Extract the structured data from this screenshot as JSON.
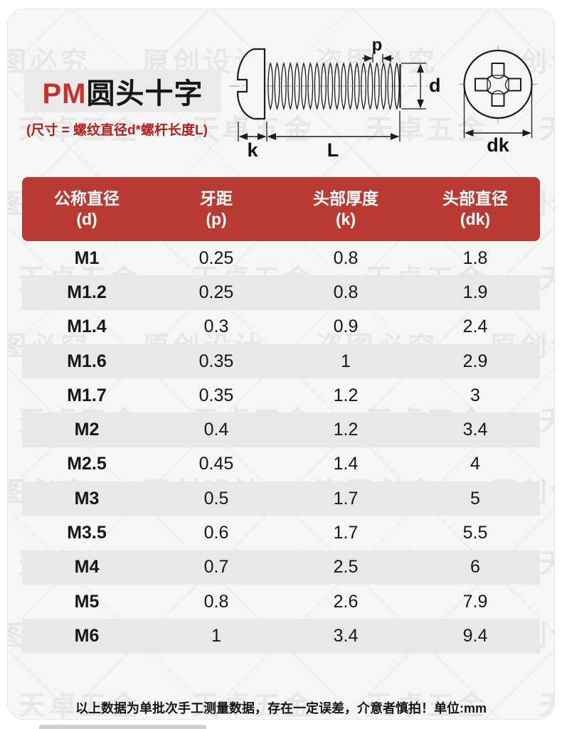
{
  "header": {
    "title_prefix": "PM",
    "title_rest": "圆头十字",
    "subtitle": "(尺寸 = 螺纹直径d*螺杆长度L)"
  },
  "watermarks": {
    "texts": [
      "原创设计",
      "盗图必究",
      "天卓五金"
    ]
  },
  "diagram": {
    "labels": {
      "pitch": "p",
      "diameter": "d",
      "head_height": "k",
      "length": "L",
      "head_diameter": "dk"
    }
  },
  "table": {
    "headers": [
      {
        "line1": "公称直径",
        "line2": "(d)"
      },
      {
        "line1": "牙距",
        "line2": "(p)"
      },
      {
        "line1": "头部厚度",
        "line2": "(k)"
      },
      {
        "line1": "头部直径",
        "line2": "(dk)"
      }
    ],
    "rows": [
      [
        "M1",
        "0.25",
        "0.8",
        "1.8"
      ],
      [
        "M1.2",
        "0.25",
        "0.8",
        "1.9"
      ],
      [
        "M1.4",
        "0.3",
        "0.9",
        "2.4"
      ],
      [
        "M1.6",
        "0.35",
        "1",
        "2.9"
      ],
      [
        "M1.7",
        "0.35",
        "1.2",
        "3"
      ],
      [
        "M2",
        "0.4",
        "1.2",
        "3.4"
      ],
      [
        "M2.5",
        "0.45",
        "1.4",
        "4"
      ],
      [
        "M3",
        "0.5",
        "1.7",
        "5"
      ],
      [
        "M3.5",
        "0.6",
        "1.7",
        "5.5"
      ],
      [
        "M4",
        "0.7",
        "2.5",
        "6"
      ],
      [
        "M5",
        "0.8",
        "2.6",
        "7.9"
      ],
      [
        "M6",
        "1",
        "3.4",
        "9.4"
      ]
    ]
  },
  "footer": {
    "note": "以上数据为单批次手工测量数据，存在一定误差，介意者慎拍！单位:mm"
  },
  "colors": {
    "header_bg": "#b83a33",
    "accent_red": "#c5322b",
    "subtitle_red": "#b1221e",
    "row_alt": "#e8e8e8",
    "card_bg": "#f6f6f6"
  }
}
